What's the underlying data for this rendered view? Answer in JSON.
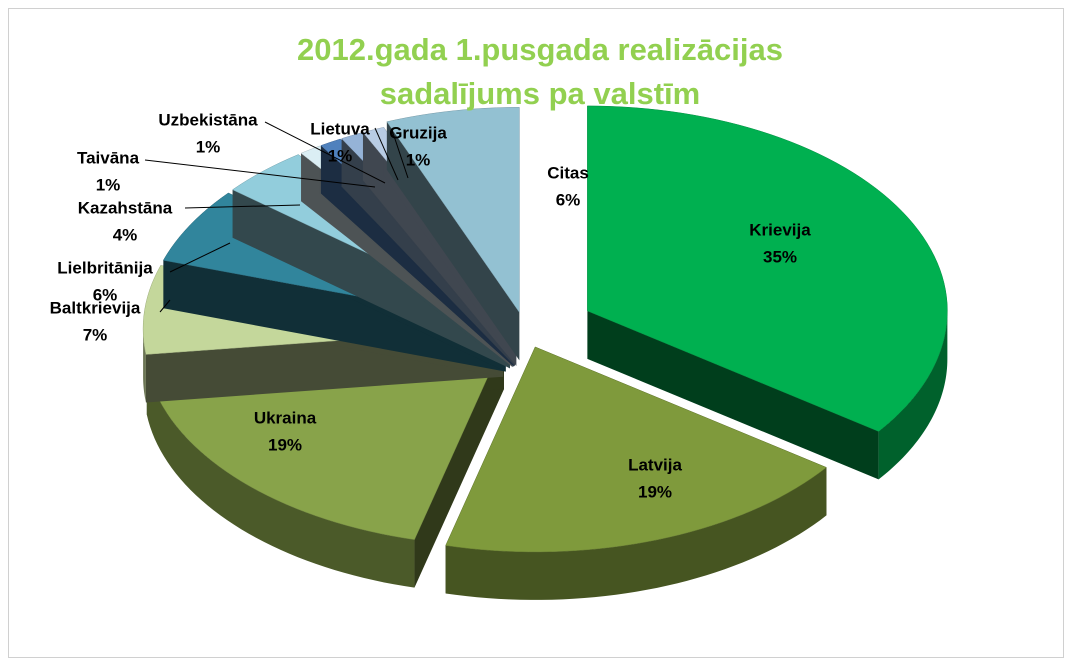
{
  "chart_data": {
    "type": "pie",
    "title": "2012.gada 1.pusgada realizācijas sadalījums pa valstīm",
    "categories": [
      "Krievija",
      "Latvija",
      "Ukraina",
      "Baltkrievija",
      "Lielbritānija",
      "Kazahstāna",
      "Taivāna",
      "Uzbekistāna",
      "Lietuva",
      "Gruzija",
      "Citas"
    ],
    "values": [
      35,
      19,
      19,
      7,
      6,
      4,
      1,
      1,
      1,
      1,
      6
    ],
    "value_labels": [
      "35%",
      "19%",
      "19%",
      "7%",
      "6%",
      "4%",
      "1%",
      "1%",
      "1%",
      "1%",
      "6%"
    ],
    "colors": [
      "#00b050",
      "#7f9a3c",
      "#88a34a",
      "#c4d79b",
      "#31859c",
      "#92cddc",
      "#dbeef4",
      "#4f81bd",
      "#95b3d7",
      "#b8cce4",
      "#93c1d2"
    ]
  }
}
